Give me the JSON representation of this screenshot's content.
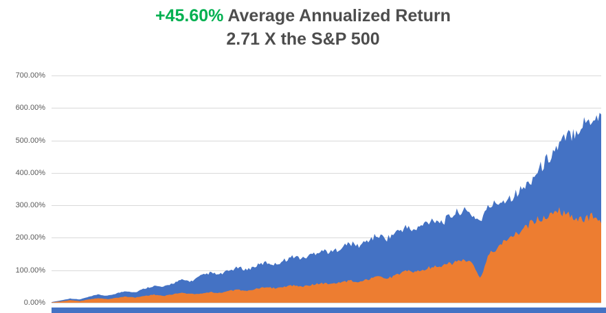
{
  "title": {
    "highlight": "+45.60%",
    "rest": " Average Annualized Return",
    "line2": "2.71 X the S&P 500",
    "highlight_color": "#00b050",
    "text_color": "#4d4d4d"
  },
  "chart_data": {
    "type": "area",
    "title": "+45.60% Average Annualized Return",
    "subtitle": "2.71 X the S&P 500",
    "xlabel": "",
    "ylabel": "",
    "ylim": [
      0,
      700
    ],
    "ytick_step": 100,
    "yticks": [
      "700.00%",
      "600.00%",
      "500.00%",
      "400.00%",
      "300.00%",
      "200.00%",
      "100.00%",
      "0.00%"
    ],
    "grid": "horizontal",
    "grid_color": "#d9d9d9",
    "legend": "none",
    "x_axis_labels_visible": false,
    "series": [
      {
        "name": "blue-series",
        "color": "#4472c4",
        "values": [
          2,
          7,
          13,
          10,
          18,
          25,
          21,
          29,
          36,
          32,
          44,
          52,
          48,
          60,
          70,
          66,
          82,
          92,
          86,
          98,
          108,
          102,
          114,
          124,
          118,
          131,
          143,
          136,
          150,
          162,
          155,
          169,
          183,
          175,
          193,
          207,
          198,
          217,
          232,
          222,
          243,
          258,
          248,
          270,
          285,
          274,
          252,
          298,
          310,
          322,
          338,
          362,
          398,
          434,
          470,
          500,
          526,
          550,
          568,
          580
        ]
      },
      {
        "name": "orange-series",
        "color": "#ed7d31",
        "values": [
          1,
          4,
          8,
          5,
          10,
          14,
          11,
          15,
          19,
          16,
          21,
          25,
          21,
          26,
          30,
          27,
          28,
          33,
          30,
          36,
          40,
          37,
          43,
          47,
          45,
          50,
          54,
          50,
          56,
          60,
          57,
          63,
          68,
          64,
          72,
          79,
          74,
          84,
          100,
          94,
          104,
          112,
          115,
          122,
          132,
          126,
          75,
          150,
          172,
          200,
          215,
          235,
          255,
          266,
          287,
          278,
          266,
          256,
          268,
          245
        ]
      }
    ]
  },
  "bottom_strip": {
    "color": "#4472c4"
  }
}
